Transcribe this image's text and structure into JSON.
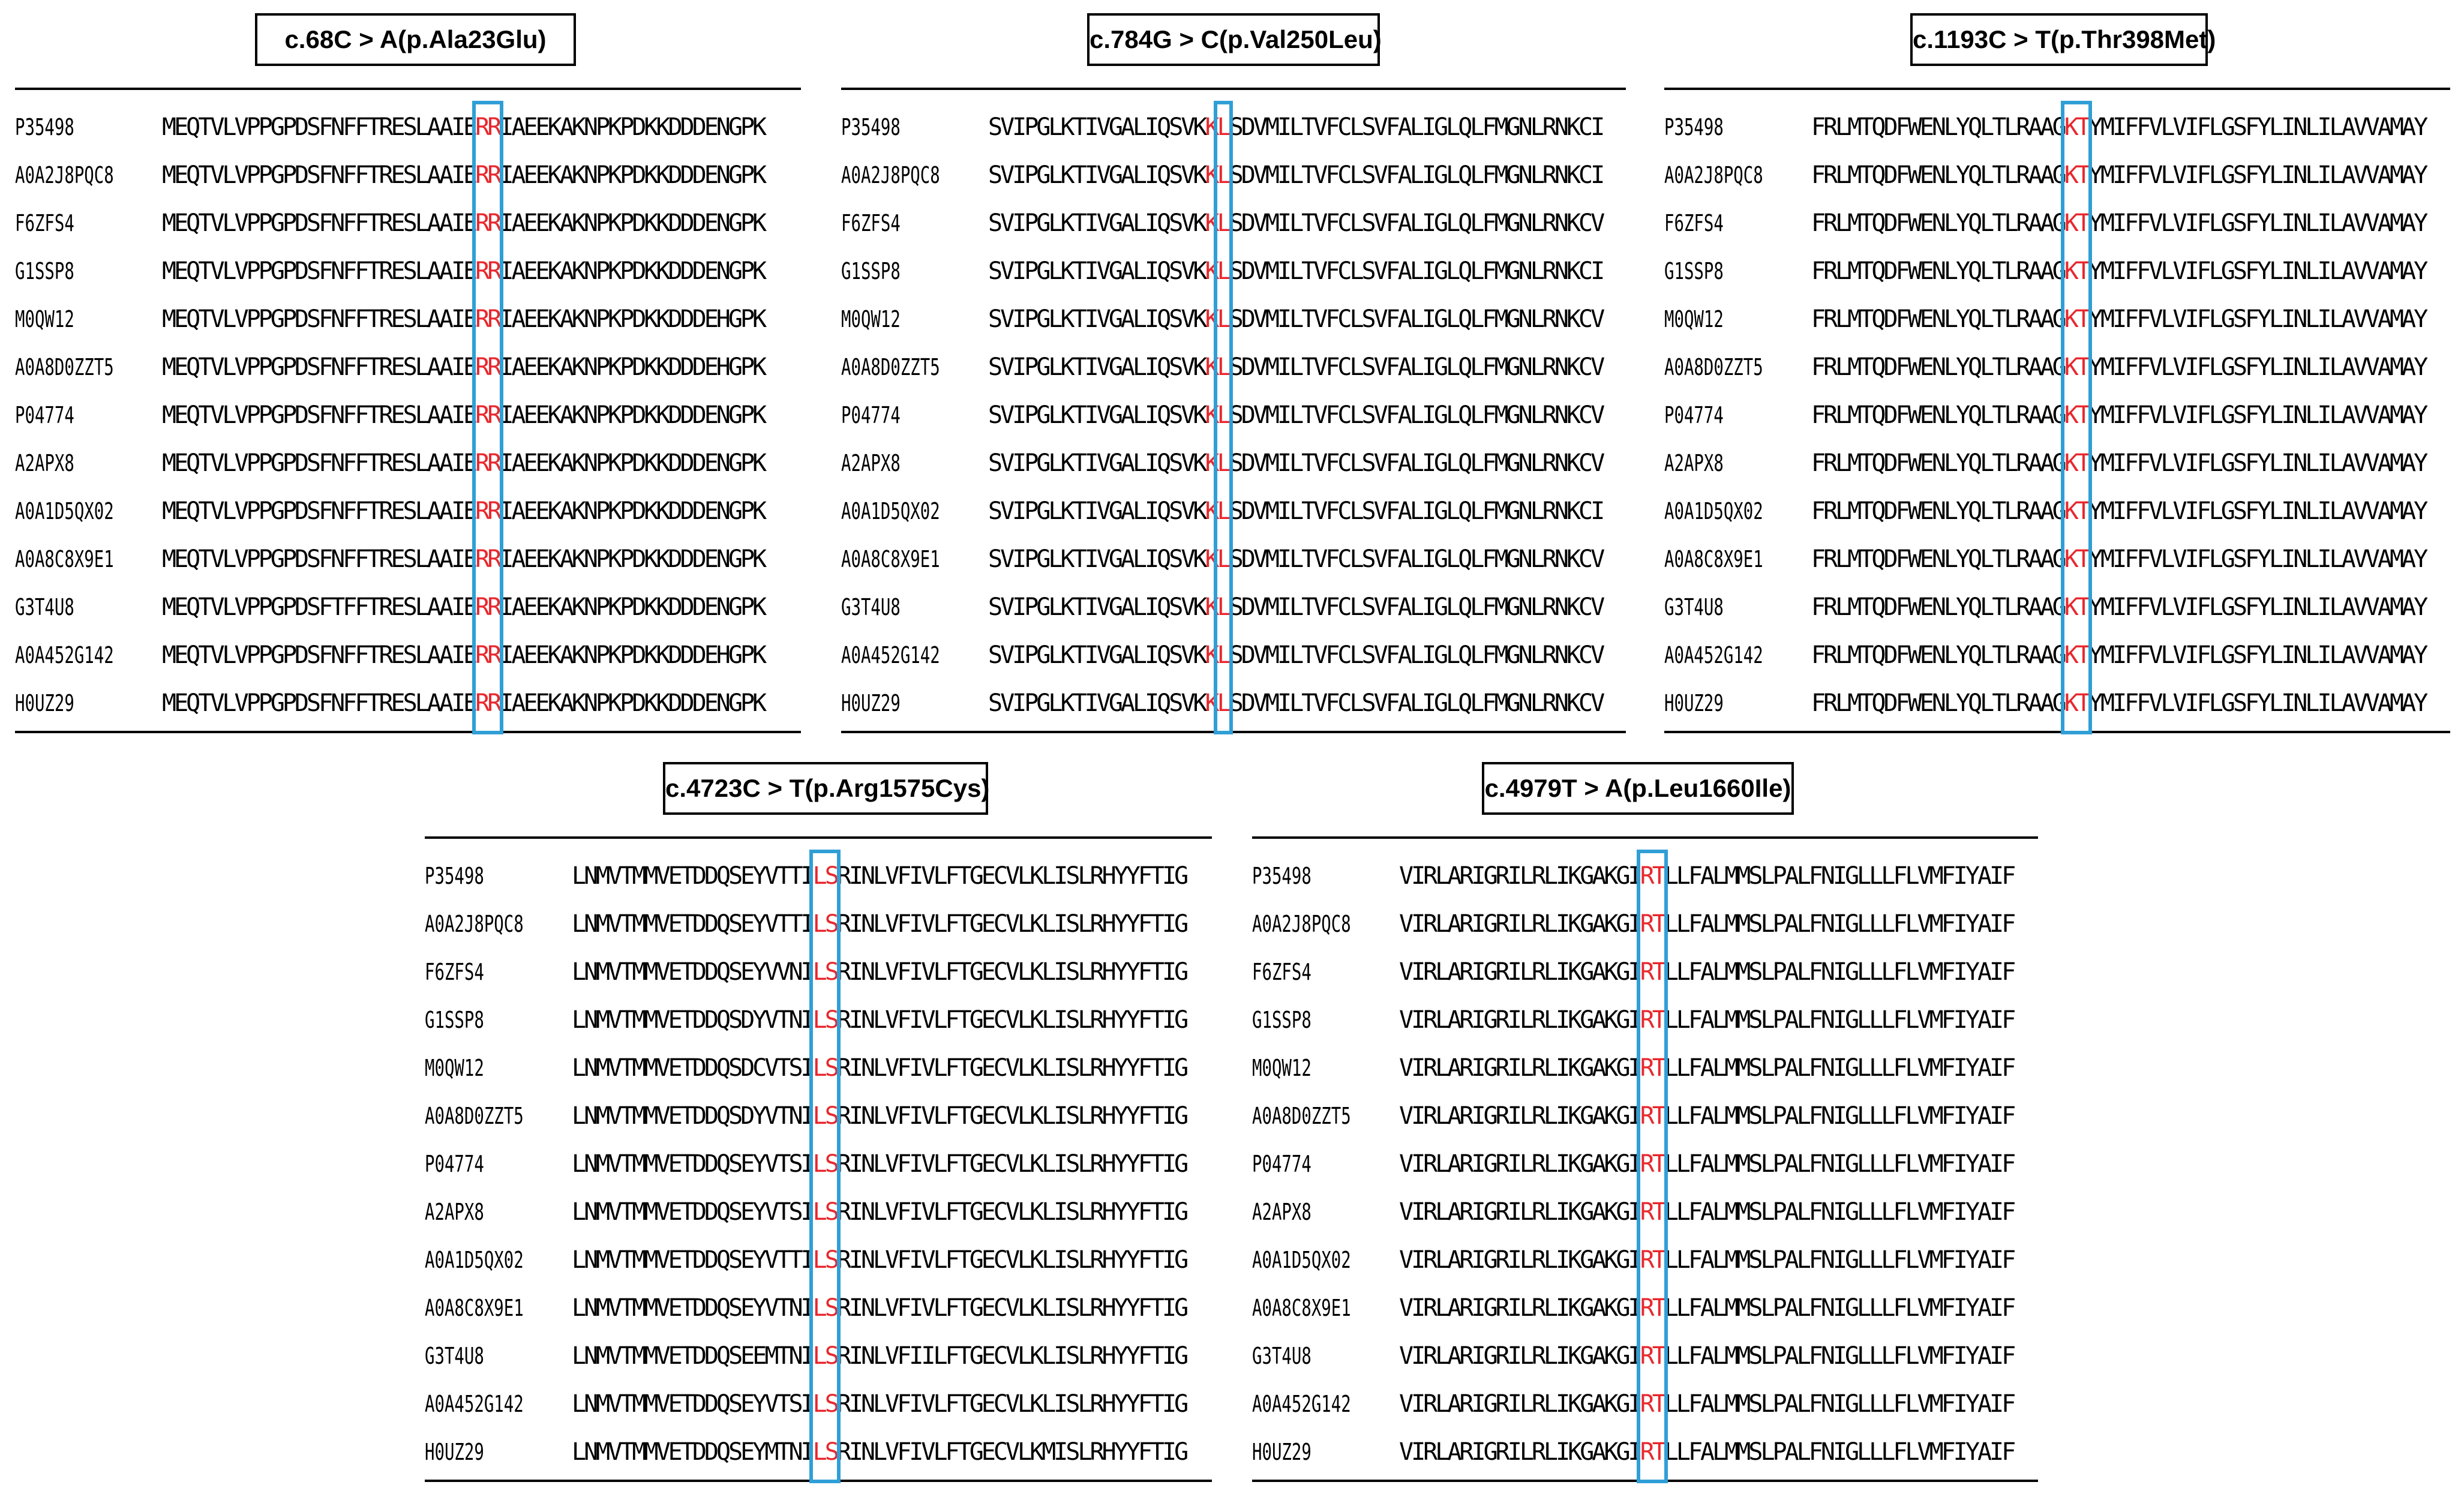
{
  "colors": {
    "highlight_residue": "#e8282d",
    "highlight_box": "#2f9fd6",
    "rule": "#000000",
    "text": "#000000"
  },
  "panels": [
    {
      "title": "c.68C > A(p.Ala23Glu)",
      "highlight_index": 26,
      "highlight_length": 2,
      "box_start_index": 26,
      "box_length": 2,
      "rows": [
        {
          "id": "P35498",
          "seq": "MEQTVLVPPGPDSFNFFTRESLAAIERRIAEEKAKNPKPDKKDDDENGPK"
        },
        {
          "id": "A0A2J8PQC8",
          "seq": "MEQTVLVPPGPDSFNFFTRESLAAIERRIAEEKAKNPKPDKKDDDENGPK"
        },
        {
          "id": "F6ZFS4",
          "seq": "MEQTVLVPPGPDSFNFFTRESLAAIERRIAEEKAKNPKPDKKDDDENGPK"
        },
        {
          "id": "G1SSP8",
          "seq": "MEQTVLVPPGPDSFNFFTRESLAAIERRIAEEKAKNPKPDKKDDDENGPK"
        },
        {
          "id": "M0QW12",
          "seq": "MEQTVLVPPGPDSFNFFTRESLAAIERRIAEEKAKNPKPDKKDDDEHGPK"
        },
        {
          "id": "A0A8D0ZZT5",
          "seq": "MEQTVLVPPGPDSFNFFTRESLAAIERRIAEEKAKNPKPDKKDDDEHGPK"
        },
        {
          "id": "P04774",
          "seq": "MEQTVLVPPGPDSFNFFTRESLAAIERRIAEEKAKNPKPDKKDDDENGPK"
        },
        {
          "id": "A2APX8",
          "seq": "MEQTVLVPPGPDSFNFFTRESLAAIERRIAEEKAKNPKPDKKDDDENGPK"
        },
        {
          "id": "A0A1D5QX02",
          "seq": "MEQTVLVPPGPDSFNFFTRESLAAIERRIAEEKAKNPKPDKKDDDENGPK"
        },
        {
          "id": "A0A8C8X9E1",
          "seq": "MEQTVLVPPGPDSFNFFTRESLAAIERRIAEEKAKNPKPDKKDDDENGPK"
        },
        {
          "id": "G3T4U8",
          "seq": "MEQTVLVPPGPDSFTFFTRESLAAIERRIAEEKAKNPKPDKKDDDENGPK"
        },
        {
          "id": "A0A452G142",
          "seq": "MEQTVLVPPGPDSFNFFTRESLAAIERRIAEEKAKNPKPDKKDDDEHGPK"
        },
        {
          "id": "H0UZ29",
          "seq": "MEQTVLVPPGPDSFNFFTRESLAAIERRIAEEKAKNPKPDKKDDDENGPK"
        }
      ]
    },
    {
      "title": "c.784G > C(p.Val250Leu)",
      "highlight_index": 18,
      "highlight_length": 2,
      "box_start_index": 19,
      "box_length": 1,
      "rows": [
        {
          "id": "P35498",
          "seq": "SVIPGLKTIVGALIQSVKKLSDVMILTVFCLSVFALIGLQLFMGNLRNKCI"
        },
        {
          "id": "A0A2J8PQC8",
          "seq": "SVIPGLKTIVGALIQSVKKLSDVMILTVFCLSVFALIGLQLFMGNLRNKCI"
        },
        {
          "id": "F6ZFS4",
          "seq": "SVIPGLKTIVGALIQSVKKLSDVMILTVFCLSVFALIGLQLFMGNLRNKCV"
        },
        {
          "id": "G1SSP8",
          "seq": "SVIPGLKTIVGALIQSVKKLSDVMILTVFCLSVFALIGLQLFMGNLRNKCI"
        },
        {
          "id": "M0QW12",
          "seq": "SVIPGLKTIVGALIQSVKKLSDVMILTVFCLSVFALIGLQLFMGNLRNKCV"
        },
        {
          "id": "A0A8D0ZZT5",
          "seq": "SVIPGLKTIVGALIQSVKKLSDVMILTVFCLSVFALIGLQLFMGNLRNKCV"
        },
        {
          "id": "P04774",
          "seq": "SVIPGLKTIVGALIQSVKKLSDVMILTVFCLSVFALIGLQLFMGNLRNKCV"
        },
        {
          "id": "A2APX8",
          "seq": "SVIPGLKTIVGALIQSVKKLSDVMILTVFCLSVFALIGLQLFMGNLRNKCV"
        },
        {
          "id": "A0A1D5QX02",
          "seq": "SVIPGLKTIVGALIQSVKKLSDVMILTVFCLSVFALIGLQLFMGNLRNKCI"
        },
        {
          "id": "A0A8C8X9E1",
          "seq": "SVIPGLKTIVGALIQSVKKLSDVMILTVFCLSVFALIGLQLFMGNLRNKCV"
        },
        {
          "id": "G3T4U8",
          "seq": "SVIPGLKTIVGALIQSVKKLSDVMILTVFCLSVFALIGLQLFMGNLRNKCV"
        },
        {
          "id": "A0A452G142",
          "seq": "SVIPGLKTIVGALIQSVKKLSDVMILTVFCLSVFALIGLQLFMGNLRNKCV"
        },
        {
          "id": "H0UZ29",
          "seq": "SVIPGLKTIVGALIQSVKKLSDVMILTVFCLSVFALIGLQLFMGNLRNKCV"
        }
      ]
    },
    {
      "title": "c.1193C > T(p.Thr398Met)",
      "highlight_index": 21,
      "highlight_length": 2,
      "box_start_index": 21,
      "box_length": 2,
      "rows": [
        {
          "id": "P35498",
          "seq": "FRLMTQDFWENLYQLTLRAAGKTYMIFFVLVIFLGSFYLINLILAVVAMAY"
        },
        {
          "id": "A0A2J8PQC8",
          "seq": "FRLMTQDFWENLYQLTLRAAGKTYMIFFVLVIFLGSFYLINLILAVVAMAY"
        },
        {
          "id": "F6ZFS4",
          "seq": "FRLMTQDFWENLYQLTLRAAGKTYMIFFVLVIFLGSFYLINLILAVVAMAY"
        },
        {
          "id": "G1SSP8",
          "seq": "FRLMTQDFWENLYQLTLRAAGKTYMIFFVLVIFLGSFYLINLILAVVAMAY"
        },
        {
          "id": "M0QW12",
          "seq": "FRLMTQDFWENLYQLTLRAAGKTYMIFFVLVIFLGSFYLINLILAVVAMAY"
        },
        {
          "id": "A0A8D0ZZT5",
          "seq": "FRLMTQDFWENLYQLTLRAAGKTYMIFFVLVIFLGSFYLINLILAVVAMAY"
        },
        {
          "id": "P04774",
          "seq": "FRLMTQDFWENLYQLTLRAAGKTYMIFFVLVIFLGSFYLINLILAVVAMAY"
        },
        {
          "id": "A2APX8",
          "seq": "FRLMTQDFWENLYQLTLRAAGKTYMIFFVLVIFLGSFYLINLILAVVAMAY"
        },
        {
          "id": "A0A1D5QX02",
          "seq": "FRLMTQDFWENLYQLTLRAAGKTYMIFFVLVIFLGSFYLINLILAVVAMAY"
        },
        {
          "id": "A0A8C8X9E1",
          "seq": "FRLMTQDFWENLYQLTLRAAGKTYMIFFVLVIFLGSFYLINLILAVVAMAY"
        },
        {
          "id": "G3T4U8",
          "seq": "FRLMTQDFWENLYQLTLRAAGKTYMIFFVLVIFLGSFYLINLILAVVAMAY"
        },
        {
          "id": "A0A452G142",
          "seq": "FRLMTQDFWENLYQLTLRAAGKTYMIFFVLVIFLGSFYLINLILAVVAMAY"
        },
        {
          "id": "H0UZ29",
          "seq": "FRLMTQDFWENLYQLTLRAAGKTYMIFFVLVIFLGSFYLINLILAVVAMAY"
        }
      ]
    },
    {
      "title": "c.4723C > T(p.Arg1575Cys)",
      "highlight_index": 20,
      "highlight_length": 2,
      "box_start_index": 20,
      "box_length": 2,
      "rows": [
        {
          "id": "P35498",
          "seq": "LNMVTMMVETDDQSEYVTTILSRINLVFIVLFTGECVLKLISLRHYYFTIG"
        },
        {
          "id": "A0A2J8PQC8",
          "seq": "LNMVTMMVETDDQSEYVTTILSRINLVFIVLFTGECVLKLISLRHYYFTIG"
        },
        {
          "id": "F6ZFS4",
          "seq": "LNMVTMMVETDDQSEYVVNILSRINLVFIVLFTGECVLKLISLRHYYFTIG"
        },
        {
          "id": "G1SSP8",
          "seq": "LNMVTMMVETDDQSDYVTNILSRINLVFIVLFTGECVLKLISLRHYYFTIG"
        },
        {
          "id": "M0QW12",
          "seq": "LNMVTMMVETDDQSDCVTSILSRINLVFIVLFTGECVLKLISLRHYYFTIG"
        },
        {
          "id": "A0A8D0ZZT5",
          "seq": "LNMVTMMVETDDQSDYVTNILSRINLVFIVLFTGECVLKLISLRHYYFTIG"
        },
        {
          "id": "P04774",
          "seq": "LNMVTMMVETDDQSEYVTSILSRINLVFIVLFTGECVLKLISLRHYYFTIG"
        },
        {
          "id": "A2APX8",
          "seq": "LNMVTMMVETDDQSEYVTSILSRINLVFIVLFTGECVLKLISLRHYYFTIG"
        },
        {
          "id": "A0A1D5QX02",
          "seq": "LNMVTMMVETDDQSEYVTTILSRINLVFIVLFTGECVLKLISLRHYYFTIG"
        },
        {
          "id": "A0A8C8X9E1",
          "seq": "LNMVTMMVETDDQSEYVTNILSRINLVFIVLFTGECVLKLISLRHYYFTIG"
        },
        {
          "id": "G3T4U8",
          "seq": "LNMVTMMVETDDQSEEMTNILSRINLVFIILFTGECVLKLISLRHYYFTIG"
        },
        {
          "id": "A0A452G142",
          "seq": "LNMVTMMVETDDQSEYVTSILSRINLVFIVLFTGECVLKLISLRHYYFTIG"
        },
        {
          "id": "H0UZ29",
          "seq": "LNMVTMMVETDDQSEYMTNILSRINLVFIVLFTGECVLKMISLRHYYFTIG"
        }
      ]
    },
    {
      "title": "c.4979T > A(p.Leu1660Ile)",
      "highlight_index": 20,
      "highlight_length": 2,
      "box_start_index": 20,
      "box_length": 2,
      "rows": [
        {
          "id": "P35498",
          "seq": "VIRLARIGRILRLIKGAKGIRTLLFALMMSLPALFNIGLLLFLVMFIYAIF"
        },
        {
          "id": "A0A2J8PQC8",
          "seq": "VIRLARIGRILRLIKGAKGIRTLLFALMMSLPALFNIGLLLFLVMFIYAIF"
        },
        {
          "id": "F6ZFS4",
          "seq": "VIRLARIGRILRLIKGAKGIRTLLFALMMSLPALFNIGLLLFLVMFIYAIF"
        },
        {
          "id": "G1SSP8",
          "seq": "VIRLARIGRILRLIKGAKGIRTLLFALMMSLPALFNIGLLLFLVMFIYAIF"
        },
        {
          "id": "M0QW12",
          "seq": "VIRLARIGRILRLIKGAKGIRTLLFALMMSLPALFNIGLLLFLVMFIYAIF"
        },
        {
          "id": "A0A8D0ZZT5",
          "seq": "VIRLARIGRILRLIKGAKGIRTLLFALMMSLPALFNIGLLLFLVMFIYAIF"
        },
        {
          "id": "P04774",
          "seq": "VIRLARIGRILRLIKGAKGIRTLLFALMMSLPALFNIGLLLFLVMFIYAIF"
        },
        {
          "id": "A2APX8",
          "seq": "VIRLARIGRILRLIKGAKGIRTLLFALMMSLPALFNIGLLLFLVMFIYAIF"
        },
        {
          "id": "A0A1D5QX02",
          "seq": "VIRLARIGRILRLIKGAKGIRTLLFALMMSLPALFNIGLLLFLVMFIYAIF"
        },
        {
          "id": "A0A8C8X9E1",
          "seq": "VIRLARIGRILRLIKGAKGIRTLLFALMMSLPALFNIGLLLFLVMFIYAIF"
        },
        {
          "id": "G3T4U8",
          "seq": "VIRLARIGRILRLIKGAKGIRTLLFALMMSLPALFNIGLLLFLVMFIYAIF"
        },
        {
          "id": "A0A452G142",
          "seq": "VIRLARIGRILRLIKGAKGIRTLLFALMMSLPALFNIGLLLFLVMFIYAIF"
        },
        {
          "id": "H0UZ29",
          "seq": "VIRLARIGRILRLIKGAKGIRTLLFALMMSLPALFNIGLLLFLVMFIYAIF"
        }
      ]
    }
  ]
}
